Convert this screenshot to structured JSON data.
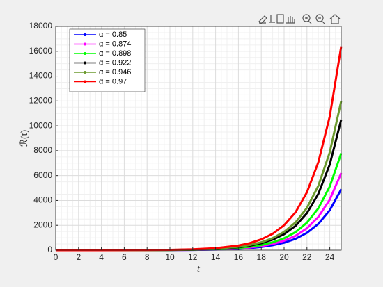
{
  "chart_data": {
    "type": "line",
    "xlabel": "t",
    "ylabel": "ℛ(t)",
    "x": [
      0,
      2,
      4,
      6,
      8,
      10,
      12,
      14,
      16,
      17,
      18,
      19,
      20,
      21,
      22,
      23,
      24,
      25
    ],
    "series": [
      {
        "name": "α = 0.85",
        "color": "#0000ff",
        "values": [
          0.1,
          0.3,
          0.7,
          2,
          4,
          9,
          21,
          48,
          112,
          170,
          259,
          394,
          600,
          911,
          1392,
          2117,
          3219,
          4900
        ]
      },
      {
        "name": "α = 0.874",
        "color": "#ff00ff",
        "values": [
          0.2,
          0.4,
          0.9,
          2,
          5,
          11,
          26,
          61,
          141,
          215,
          328,
          499,
          760,
          1153,
          1761,
          2678,
          4073,
          6200
        ]
      },
      {
        "name": "α = 0.898",
        "color": "#00ff00",
        "values": [
          0.2,
          0.5,
          1.2,
          3,
          6,
          14,
          33,
          77,
          178,
          271,
          413,
          628,
          956,
          1451,
          2215,
          3370,
          5125,
          7800
        ]
      },
      {
        "name": "α = 0.922",
        "color": "#000000",
        "values": [
          0.3,
          0.6,
          1.6,
          4,
          8,
          19,
          45,
          104,
          239,
          364,
          556,
          845,
          1286,
          1953,
          2982,
          4536,
          6899,
          10500
        ]
      },
      {
        "name": "α = 0.946",
        "color": "#6b9a2e",
        "values": [
          0.4,
          0.7,
          1.8,
          4,
          10,
          22,
          51,
          118,
          274,
          416,
          635,
          966,
          1470,
          2232,
          3408,
          5184,
          7884,
          12000
        ]
      },
      {
        "name": "α = 0.97",
        "color": "#ff0000",
        "values": [
          0.5,
          1,
          2.5,
          6,
          13,
          30,
          70,
          162,
          374,
          569,
          868,
          1320,
          2009,
          3050,
          4658,
          7085,
          10775,
          16400
        ]
      }
    ],
    "xlim": [
      0,
      25
    ],
    "xticks": [
      0,
      2,
      4,
      6,
      8,
      10,
      12,
      14,
      16,
      18,
      20,
      22,
      24
    ],
    "ylim": [
      0,
      18000
    ],
    "yticks": [
      0,
      2000,
      4000,
      6000,
      8000,
      10000,
      12000,
      14000,
      16000,
      18000
    ],
    "grid": true,
    "minor_grid": true,
    "legend": "upper left"
  }
}
